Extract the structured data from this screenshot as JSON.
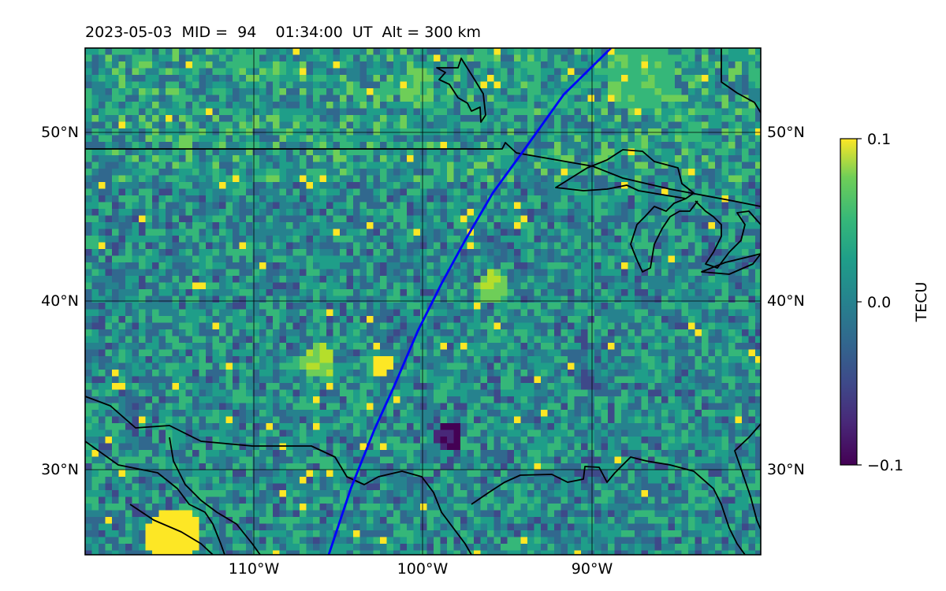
{
  "title": "2023-05-03  MID =  94    01:34:00  UT  Alt = 300 km",
  "map": {
    "lon_range": [
      -120,
      -80
    ],
    "lat_range": [
      25,
      55
    ],
    "grid": true,
    "lat_ticks": [
      {
        "value": 50,
        "label": "50°N"
      },
      {
        "value": 40,
        "label": "40°N"
      },
      {
        "value": 30,
        "label": "30°N"
      }
    ],
    "lon_ticks": [
      {
        "value": -110,
        "label": "110°W"
      },
      {
        "value": -100,
        "label": "100°W"
      },
      {
        "value": -90,
        "label": "90°W"
      }
    ]
  },
  "colorbar": {
    "label": "TECU",
    "colormap": "viridis",
    "ticks": [
      {
        "value": 0.1,
        "label": "0.1"
      },
      {
        "value": 0.0,
        "label": "0.0"
      },
      {
        "value": -0.1,
        "label": "−0.1"
      }
    ],
    "range": [
      -0.1,
      0.1
    ]
  },
  "colors": {
    "satellite_track": "#0000ff",
    "coastline": "#000000",
    "grid": "#000000"
  }
}
